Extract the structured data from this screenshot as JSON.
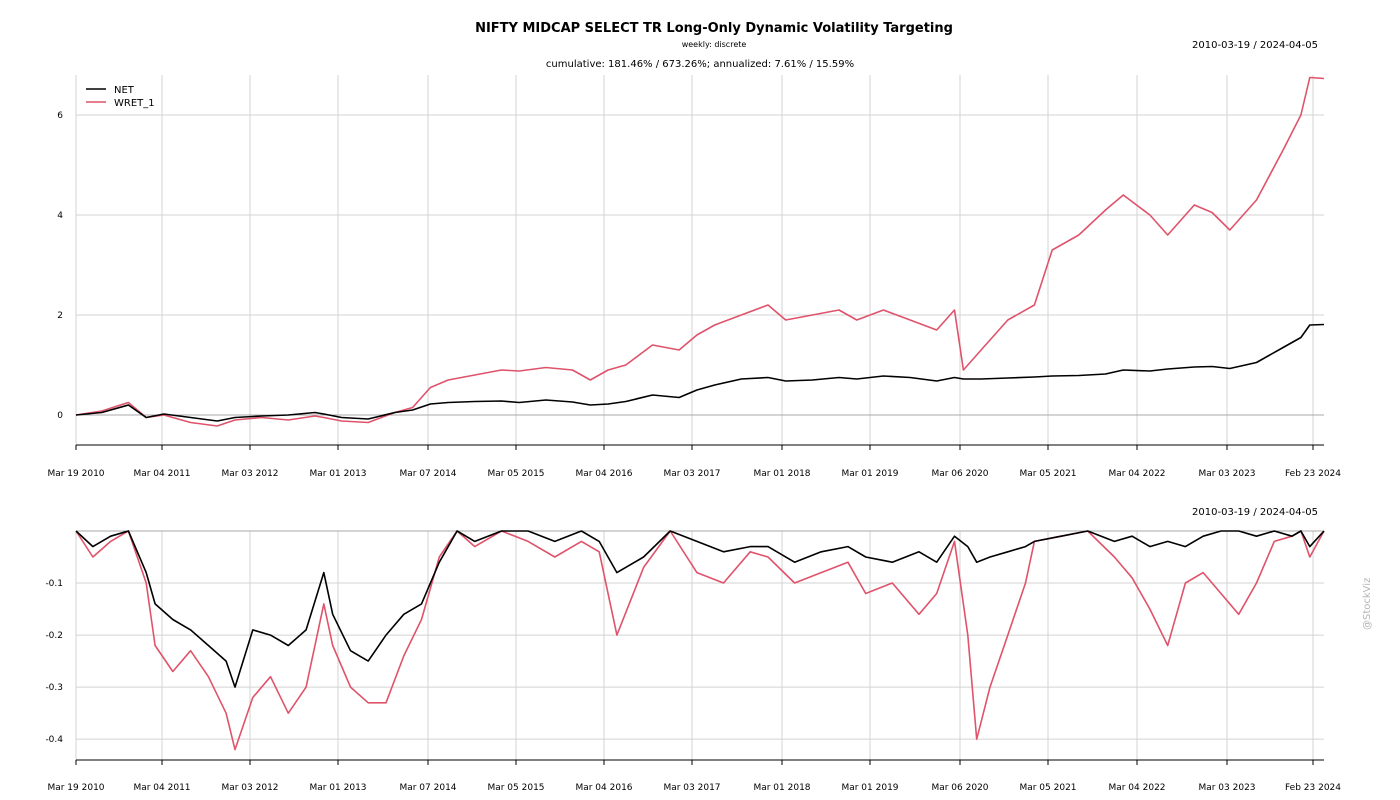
{
  "chart_data": {
    "type": "line",
    "title": "NIFTY MIDCAP SELECT TR Long-Only Dynamic Volatility Targeting",
    "subtitle": "weekly: discrete",
    "date_range": "2010-03-19 / 2024-04-05",
    "stats": "cumulative: 181.46% / 673.26%; annualized: 7.61% / 15.59%",
    "x_tick_labels": [
      "Mar 19 2010",
      "Mar 04 2011",
      "Mar 03 2012",
      "Mar 01 2013",
      "Mar 07 2014",
      "Mar 05 2015",
      "Mar 04 2016",
      "Mar 03 2017",
      "Mar 01 2018",
      "Mar 01 2019",
      "Mar 06 2020",
      "Mar 05 2021",
      "Mar 04 2022",
      "Mar 03 2023",
      "Feb 23 2024"
    ],
    "panels": [
      {
        "name": "cumulative",
        "yticks": [
          "0",
          "2",
          "4",
          "6"
        ],
        "ylim": [
          -0.6,
          6.8
        ],
        "legend": {
          "placement": "top-left",
          "entries": [
            "NET",
            "WRET_1"
          ]
        },
        "x": [
          2010.21,
          2010.5,
          2010.8,
          2011.0,
          2011.2,
          2011.5,
          2011.8,
          2012.0,
          2012.3,
          2012.6,
          2012.9,
          2013.0,
          2013.2,
          2013.5,
          2013.8,
          2014.0,
          2014.2,
          2014.4,
          2014.7,
          2015.0,
          2015.2,
          2015.5,
          2015.8,
          2016.0,
          2016.2,
          2016.4,
          2016.7,
          2017.0,
          2017.2,
          2017.4,
          2017.7,
          2018.0,
          2018.2,
          2018.5,
          2018.8,
          2019.0,
          2019.3,
          2019.6,
          2019.9,
          2020.1,
          2020.2,
          2020.4,
          2020.7,
          2021.0,
          2021.2,
          2021.5,
          2021.8,
          2022.0,
          2022.3,
          2022.5,
          2022.8,
          2023.0,
          2023.2,
          2023.5,
          2023.8,
          2024.0,
          2024.1,
          2024.26
        ],
        "series": [
          {
            "name": "NET",
            "color": "#000000",
            "values": [
              0.0,
              0.05,
              0.2,
              -0.05,
              0.02,
              -0.05,
              -0.12,
              -0.05,
              -0.02,
              0.0,
              0.05,
              0.02,
              -0.05,
              -0.08,
              0.05,
              0.1,
              0.22,
              0.25,
              0.27,
              0.28,
              0.25,
              0.3,
              0.26,
              0.2,
              0.22,
              0.27,
              0.4,
              0.35,
              0.5,
              0.6,
              0.72,
              0.75,
              0.68,
              0.7,
              0.75,
              0.72,
              0.78,
              0.75,
              0.68,
              0.75,
              0.72,
              0.72,
              0.74,
              0.76,
              0.78,
              0.79,
              0.82,
              0.9,
              0.88,
              0.92,
              0.96,
              0.97,
              0.93,
              1.05,
              1.35,
              1.55,
              1.8,
              1.81
            ]
          },
          {
            "name": "WRET_1",
            "color": "#df536b",
            "values": [
              0.0,
              0.08,
              0.25,
              -0.05,
              0.0,
              -0.15,
              -0.22,
              -0.1,
              -0.05,
              -0.1,
              -0.02,
              -0.05,
              -0.12,
              -0.15,
              0.05,
              0.15,
              0.55,
              0.7,
              0.8,
              0.9,
              0.88,
              0.95,
              0.9,
              0.7,
              0.9,
              1.0,
              1.4,
              1.3,
              1.6,
              1.8,
              2.0,
              2.2,
              1.9,
              2.0,
              2.1,
              1.9,
              2.1,
              1.9,
              1.7,
              2.1,
              0.9,
              1.3,
              1.9,
              2.2,
              3.3,
              3.6,
              4.1,
              4.4,
              4.0,
              3.6,
              4.2,
              4.05,
              3.7,
              4.3,
              5.3,
              6.0,
              6.75,
              6.73
            ]
          }
        ]
      },
      {
        "name": "drawdown",
        "yticks": [
          "-0.1",
          "-0.2",
          "-0.3",
          "-0.4"
        ],
        "ylim": [
          -0.44,
          0.0
        ],
        "x": [
          2010.21,
          2010.4,
          2010.6,
          2010.8,
          2011.0,
          2011.1,
          2011.3,
          2011.5,
          2011.7,
          2011.9,
          2012.0,
          2012.2,
          2012.4,
          2012.6,
          2012.8,
          2013.0,
          2013.1,
          2013.3,
          2013.5,
          2013.7,
          2013.9,
          2014.1,
          2014.3,
          2014.5,
          2014.7,
          2015.0,
          2015.3,
          2015.6,
          2015.9,
          2016.1,
          2016.3,
          2016.6,
          2016.9,
          2017.2,
          2017.5,
          2017.8,
          2018.0,
          2018.3,
          2018.6,
          2018.9,
          2019.1,
          2019.4,
          2019.7,
          2019.9,
          2020.1,
          2020.25,
          2020.35,
          2020.5,
          2020.7,
          2020.9,
          2021.0,
          2021.3,
          2021.6,
          2021.9,
          2022.1,
          2022.3,
          2022.5,
          2022.7,
          2022.9,
          2023.1,
          2023.3,
          2023.5,
          2023.7,
          2023.9,
          2024.0,
          2024.1,
          2024.26
        ],
        "series": [
          {
            "name": "NET",
            "color": "#000000",
            "values": [
              0.0,
              -0.03,
              -0.01,
              0.0,
              -0.08,
              -0.14,
              -0.17,
              -0.19,
              -0.22,
              -0.25,
              -0.3,
              -0.19,
              -0.2,
              -0.22,
              -0.19,
              -0.08,
              -0.16,
              -0.23,
              -0.25,
              -0.2,
              -0.16,
              -0.14,
              -0.06,
              0.0,
              -0.02,
              0.0,
              0.0,
              -0.02,
              0.0,
              -0.02,
              -0.08,
              -0.05,
              0.0,
              -0.02,
              -0.04,
              -0.03,
              -0.03,
              -0.06,
              -0.04,
              -0.03,
              -0.05,
              -0.06,
              -0.04,
              -0.06,
              -0.01,
              -0.03,
              -0.06,
              -0.05,
              -0.04,
              -0.03,
              -0.02,
              -0.01,
              0.0,
              -0.02,
              -0.01,
              -0.03,
              -0.02,
              -0.03,
              -0.01,
              0.0,
              0.0,
              -0.01,
              0.0,
              -0.01,
              0.0,
              -0.03,
              0.0
            ]
          },
          {
            "name": "WRET_1",
            "color": "#df536b",
            "values": [
              0.0,
              -0.05,
              -0.02,
              0.0,
              -0.1,
              -0.22,
              -0.27,
              -0.23,
              -0.28,
              -0.35,
              -0.42,
              -0.32,
              -0.28,
              -0.35,
              -0.3,
              -0.14,
              -0.22,
              -0.3,
              -0.33,
              -0.33,
              -0.24,
              -0.17,
              -0.05,
              0.0,
              -0.03,
              0.0,
              -0.02,
              -0.05,
              -0.02,
              -0.04,
              -0.2,
              -0.07,
              0.0,
              -0.08,
              -0.1,
              -0.04,
              -0.05,
              -0.1,
              -0.08,
              -0.06,
              -0.12,
              -0.1,
              -0.16,
              -0.12,
              -0.02,
              -0.2,
              -0.4,
              -0.3,
              -0.2,
              -0.1,
              -0.02,
              -0.01,
              0.0,
              -0.05,
              -0.09,
              -0.15,
              -0.22,
              -0.1,
              -0.08,
              -0.12,
              -0.16,
              -0.1,
              -0.02,
              -0.01,
              0.0,
              -0.05,
              0.0
            ]
          }
        ]
      }
    ]
  }
}
